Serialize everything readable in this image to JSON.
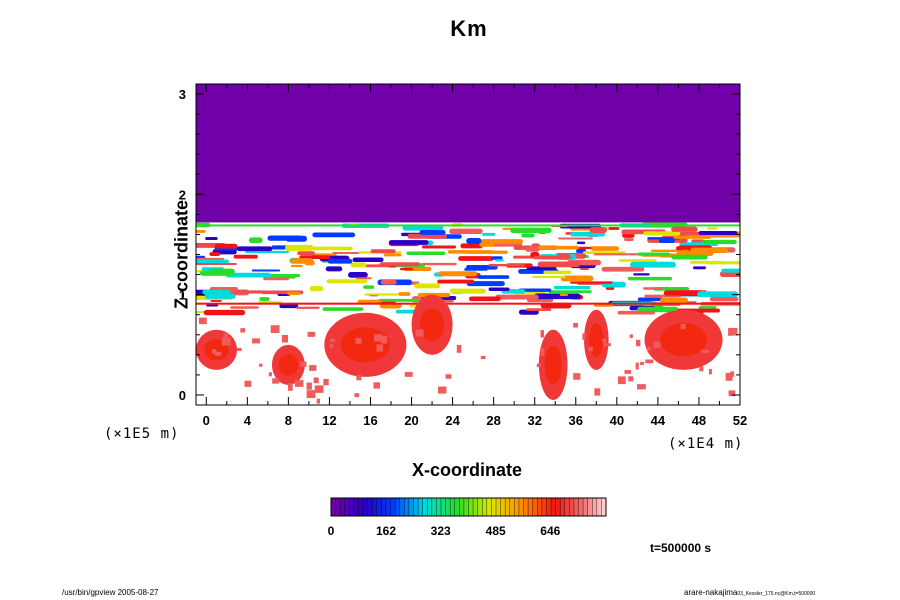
{
  "chart_data": {
    "type": "heatmap",
    "title": "Km",
    "xlabel": "X-coordinate",
    "ylabel": "Z-coordinate",
    "x_unit": "(×1E4 m)",
    "y_unit": "(×1E5 m)",
    "xlim": [
      -1,
      52
    ],
    "ylim": [
      -0.1,
      3.1
    ],
    "x_ticks": [
      "0",
      "4",
      "8",
      "12",
      "16",
      "20",
      "24",
      "28",
      "32",
      "36",
      "40",
      "44",
      "48",
      "52"
    ],
    "x_tick_values": [
      0,
      4,
      8,
      12,
      16,
      20,
      24,
      28,
      32,
      36,
      40,
      44,
      48,
      52
    ],
    "y_ticks": [
      "0",
      "1",
      "2",
      "3"
    ],
    "y_tick_values": [
      0,
      1,
      2,
      3
    ],
    "upper_layer": {
      "z_from": 1.72,
      "z_to": 3.1,
      "value": 0,
      "color": "#7000a8"
    },
    "colorbar": {
      "tick_labels": [
        "0",
        "162",
        "323",
        "485",
        "646"
      ],
      "tick_values": [
        0,
        162,
        323,
        485,
        646
      ],
      "max": 810
    },
    "annotation": "t=500000 s"
  },
  "footer": {
    "left": "/usr/bin/gpview 2005-08-27",
    "right": "arare-nakajima",
    "right_small": "03_Kessler_175.nc@Km,t=500000"
  }
}
